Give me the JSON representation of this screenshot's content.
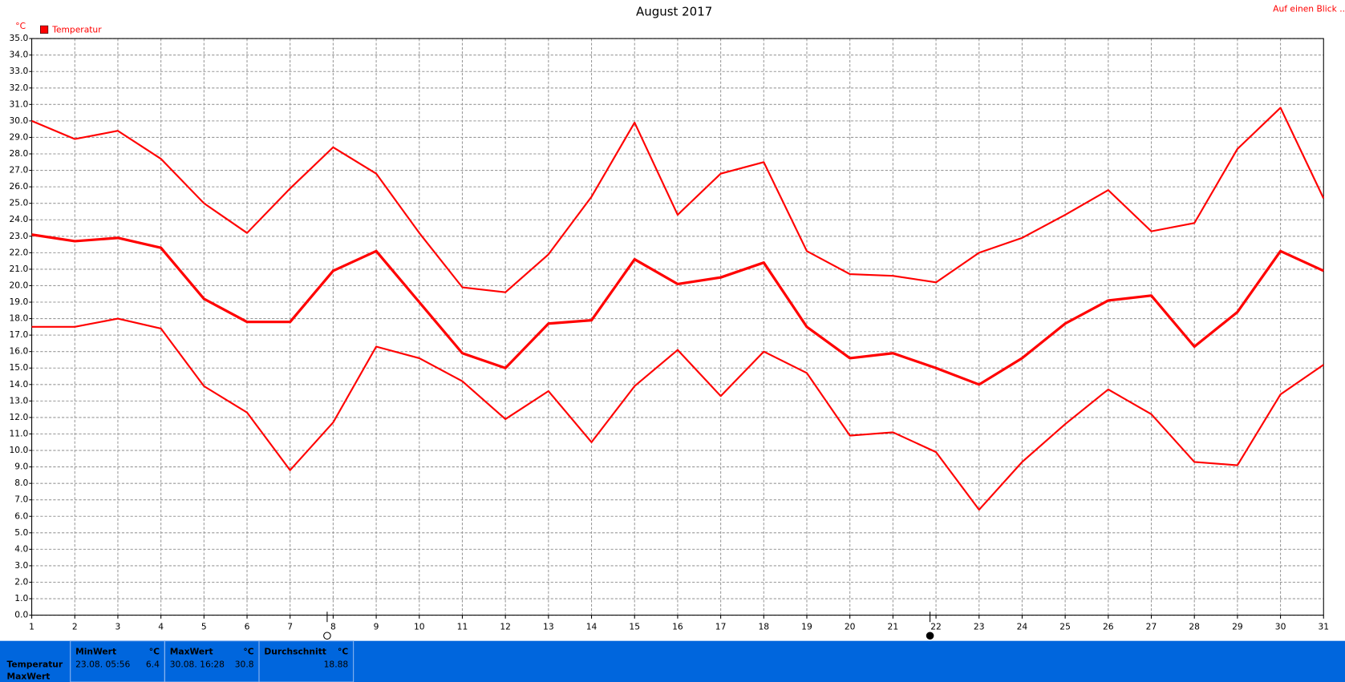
{
  "chart_data": {
    "type": "line",
    "title": "August 2017",
    "y_unit": "°C",
    "legend": {
      "label": "Temperatur",
      "color": "#ff0000"
    },
    "categories": [
      "1",
      "2",
      "3",
      "4",
      "5",
      "6",
      "7",
      "8",
      "9",
      "10",
      "11",
      "12",
      "13",
      "14",
      "15",
      "16",
      "17",
      "18",
      "19",
      "20",
      "21",
      "22",
      "23",
      "24",
      "25",
      "26",
      "27",
      "28",
      "29",
      "30",
      "31"
    ],
    "series": [
      {
        "color": "#ff0000",
        "values": [
          30.0,
          28.9,
          29.4,
          27.7,
          25.0,
          23.2,
          25.9,
          28.4,
          26.8,
          23.2,
          19.9,
          19.6,
          21.9,
          25.4,
          29.9,
          24.3,
          26.8,
          27.5,
          22.1,
          20.7,
          20.6,
          20.2,
          22.0,
          22.9,
          24.3,
          25.8,
          23.3,
          23.8,
          28.3,
          30.8,
          25.3
        ]
      },
      {
        "color": "#ff0000",
        "values": [
          23.1,
          22.7,
          22.9,
          22.3,
          19.2,
          17.8,
          17.8,
          20.9,
          22.1,
          19.0,
          15.9,
          15.0,
          17.7,
          17.9,
          21.6,
          20.1,
          20.5,
          21.4,
          17.5,
          15.6,
          15.9,
          15.0,
          14.0,
          15.6,
          17.7,
          19.1,
          19.4,
          16.3,
          18.4,
          22.1,
          20.9
        ]
      },
      {
        "color": "#ff0000",
        "values": [
          17.5,
          17.5,
          18.0,
          17.4,
          13.9,
          12.3,
          8.8,
          11.7,
          16.3,
          15.6,
          14.2,
          11.9,
          13.6,
          10.5,
          13.9,
          16.1,
          13.3,
          16.0,
          14.7,
          10.9,
          11.1,
          9.9,
          6.4,
          9.3,
          11.6,
          13.7,
          12.2,
          9.3,
          9.1,
          13.4,
          15.2
        ]
      }
    ],
    "ylim": [
      0,
      35
    ],
    "yticks": [
      {
        "value": 0,
        "label": "0.0"
      },
      {
        "value": 1,
        "label": "1.0"
      },
      {
        "value": 2,
        "label": "2.0"
      },
      {
        "value": 3,
        "label": "3.0"
      },
      {
        "value": 4,
        "label": "4.0"
      },
      {
        "value": 5,
        "label": "5.0"
      },
      {
        "value": 6,
        "label": "6.0"
      },
      {
        "value": 7,
        "label": "7.0"
      },
      {
        "value": 8,
        "label": "8.0"
      },
      {
        "value": 9,
        "label": "9.0"
      },
      {
        "value": 10,
        "label": "10.0"
      },
      {
        "value": 11,
        "label": "11.0"
      },
      {
        "value": 12,
        "label": "12.0"
      },
      {
        "value": 13,
        "label": "13.0"
      },
      {
        "value": 14,
        "label": "14.0"
      },
      {
        "value": 15,
        "label": "15.0"
      },
      {
        "value": 16,
        "label": "16.0"
      },
      {
        "value": 17,
        "label": "17.0"
      },
      {
        "value": 18,
        "label": "18.0"
      },
      {
        "value": 19,
        "label": "19.0"
      },
      {
        "value": 20,
        "label": "20.0"
      },
      {
        "value": 21,
        "label": "21.0"
      },
      {
        "value": 22,
        "label": "22.0"
      },
      {
        "value": 23,
        "label": "23.0"
      },
      {
        "value": 24,
        "label": "24.0"
      },
      {
        "value": 25,
        "label": "25.0"
      },
      {
        "value": 26,
        "label": "26.0"
      },
      {
        "value": 27,
        "label": "27.0"
      },
      {
        "value": 28,
        "label": "28.0"
      },
      {
        "value": 29,
        "label": "29.0"
      },
      {
        "value": 30,
        "label": "30.0"
      },
      {
        "value": 31,
        "label": "31.0"
      },
      {
        "value": 32,
        "label": "32.0"
      },
      {
        "value": 33,
        "label": "33.0"
      },
      {
        "value": 34,
        "label": "34.0"
      },
      {
        "value": 35,
        "label": "35.0"
      }
    ],
    "grid": true
  },
  "link": "Auf einen Blick ...",
  "summary_table": {
    "row_labels": [
      "Temperatur",
      "MaxWert"
    ],
    "columns": [
      {
        "header": "MinWert",
        "unit": "°C",
        "time": "23.08. 05:56",
        "value": 6.4
      },
      {
        "header": "MaxWert",
        "unit": "°C",
        "time": "30.08. 16:28",
        "value": 30.8
      },
      {
        "header": "Durchschnitt",
        "unit": "°C",
        "value": 18.88
      }
    ]
  }
}
